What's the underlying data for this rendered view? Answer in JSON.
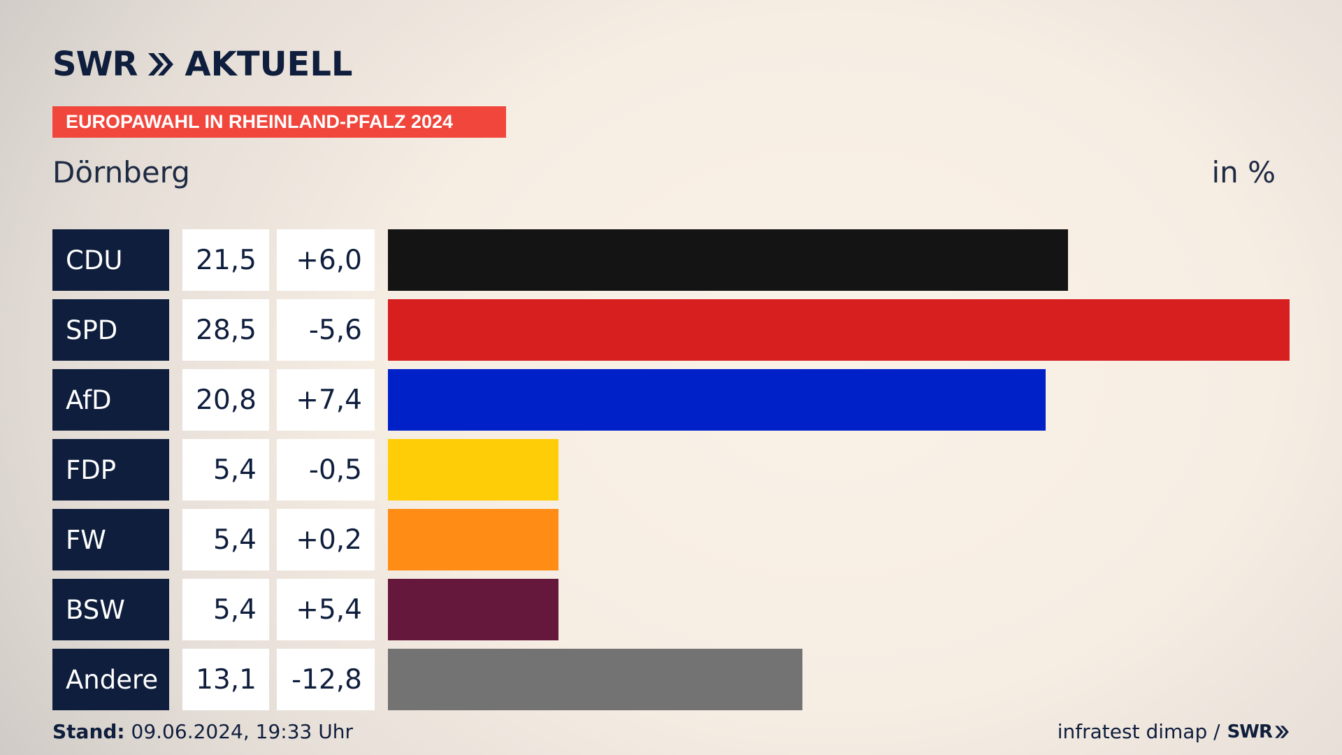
{
  "brand": {
    "name": "SWR",
    "channel": "AKTUELL"
  },
  "banner": "EUROPAWAHL IN RHEINLAND-PFALZ 2024",
  "place": "Dörnberg",
  "unit": "in %",
  "footer": {
    "stand_label": "Stand:",
    "stand_value": "09.06.2024, 19:33 Uhr",
    "source": "infratest dimap /",
    "source_brand": "SWR"
  },
  "chart_data": {
    "type": "bar",
    "orientation": "horizontal",
    "title": "Dörnberg",
    "unit": "in %",
    "categories": [
      "CDU",
      "SPD",
      "AfD",
      "FDP",
      "FW",
      "BSW",
      "Andere"
    ],
    "values": [
      21.5,
      28.5,
      20.8,
      5.4,
      5.4,
      5.4,
      13.1
    ],
    "value_labels": [
      "21,5",
      "28,5",
      "20,8",
      "5,4",
      "5,4",
      "5,4",
      "13,1"
    ],
    "change_labels": [
      "+6,0",
      "-5,6",
      "+7,4",
      "-0,5",
      "+0,2",
      "+5,4",
      "-12,8"
    ],
    "colors": [
      "#141414",
      "#d71f1f",
      "#0021c8",
      "#ffcd07",
      "#ff8c14",
      "#66173c",
      "#737373"
    ],
    "xlim": [
      0,
      28.5
    ],
    "grid": false,
    "legend": "none"
  }
}
